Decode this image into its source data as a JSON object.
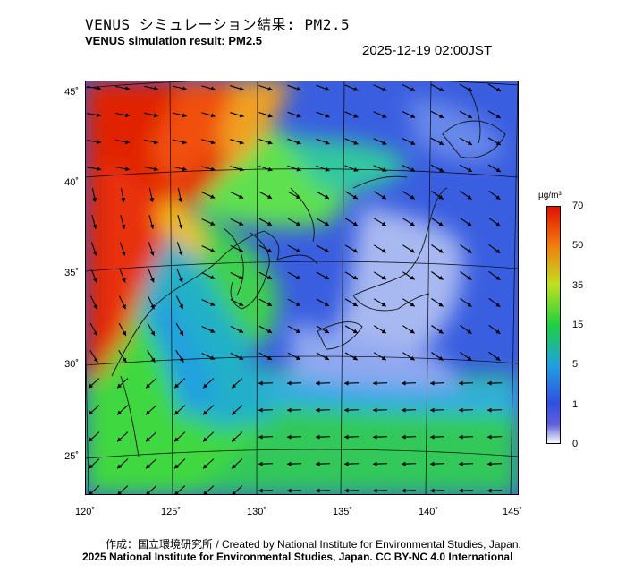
{
  "header": {
    "title_jp": "VENUS シミュレーション結果: PM2.5",
    "title_en": "VENUS simulation result: PM2.5",
    "timestamp": "2025-12-19 02:00JST"
  },
  "axes": {
    "lat_labels": [
      "45˚",
      "40˚",
      "35˚",
      "30˚",
      "25˚"
    ],
    "lon_labels": [
      "120˚",
      "125˚",
      "130˚",
      "135˚",
      "140˚",
      "145˚"
    ]
  },
  "colorbar": {
    "unit": "µg/m³",
    "ticks": [
      "70",
      "50",
      "35",
      "15",
      "5",
      "1",
      "0"
    ],
    "colors": {
      "c0": "#ffffff",
      "c1": "#3050e0",
      "c5": "#20a0e0",
      "c15": "#20d040",
      "c35": "#f0e020",
      "c50": "#f07010",
      "c70": "#e01000"
    }
  },
  "footer": {
    "credit_line1": "作成：国立環境研究所 / Created by National Institute for Environmental Studies, Japan.",
    "credit_line2": "2025 National Institute for Environmental Studies, Japan. CC BY-NC 4.0 International"
  }
}
